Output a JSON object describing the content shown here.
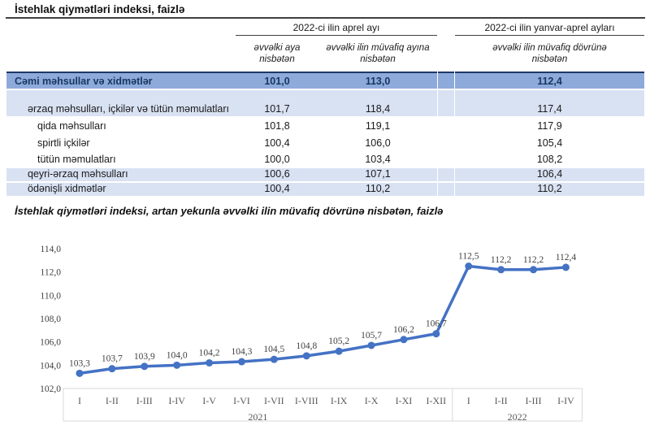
{
  "page": {
    "title": "İstehlak qiymətləri indeksi, faizlə"
  },
  "table": {
    "col_groups": [
      {
        "label": "2022-ci ilin aprel ayı"
      },
      {
        "label": "2022-ci ilin yanvar-aprel ayları"
      }
    ],
    "col_headers": [
      "əvvəlki aya nisbətən",
      "əvvəlki ilin müvafiq ayına nisbətən",
      "əvvəlki ilin müvafiq dövrünə nisbətən"
    ],
    "rows": [
      {
        "label": "Cəmi məhsullar və xidmətlər",
        "indent": 0,
        "bold": true,
        "band": "accent",
        "values": [
          "101,0",
          "113,0",
          "112,4"
        ]
      },
      {
        "label": "ərzaq məhsulları, içkilər və tütün məmulatları",
        "indent": 1,
        "bold": false,
        "band": "light",
        "values": [
          "101,7",
          "118,4",
          "117,4"
        ]
      },
      {
        "label": "qida məhsulları",
        "indent": 2,
        "bold": false,
        "band": "white",
        "values": [
          "101,8",
          "119,1",
          "117,9"
        ]
      },
      {
        "label": "spirtli içkilər",
        "indent": 2,
        "bold": false,
        "band": "white",
        "values": [
          "100,4",
          "106,0",
          "105,4"
        ]
      },
      {
        "label": "tütün məmulatları",
        "indent": 2,
        "bold": false,
        "band": "white",
        "values": [
          "100,0",
          "103,4",
          "108,2"
        ]
      },
      {
        "label": "qeyri-ərzaq məhsulları",
        "indent": 1,
        "bold": false,
        "band": "light",
        "values": [
          "100,6",
          "107,1",
          "106,4"
        ]
      },
      {
        "label": "ödənişli xidmətlər",
        "indent": 1,
        "bold": false,
        "band": "light",
        "values": [
          "100,4",
          "110,2",
          "110,2"
        ]
      }
    ]
  },
  "chart_data": {
    "type": "line",
    "title": "İstehlak qiymətləri indeksi, artan yekunla əvvəlki ilin müvafiq dövrünə nisbətən, faizlə",
    "categories": [
      "I",
      "I-II",
      "I-III",
      "I-IV",
      "I-V",
      "I-VI",
      "I-VII",
      "I-VIII",
      "I-IX",
      "I-X",
      "I-XI",
      "I-XII",
      "I",
      "I-II",
      "I-III",
      "I-IV"
    ],
    "year_groups": [
      {
        "label": "2021",
        "span": 12
      },
      {
        "label": "2022",
        "span": 4
      }
    ],
    "values": [
      103.3,
      103.7,
      103.9,
      104.0,
      104.2,
      104.3,
      104.5,
      104.8,
      105.2,
      105.7,
      106.2,
      106.7,
      112.5,
      112.2,
      112.2,
      112.4
    ],
    "point_labels": [
      "103,3",
      "103,7",
      "103,9",
      "104,0",
      "104,2",
      "104,3",
      "104,5",
      "104,8",
      "105,2",
      "105,7",
      "106,2",
      "106,7",
      "112,5",
      "112,2",
      "112,2",
      "112,4"
    ],
    "ylim": [
      102,
      114
    ],
    "ytick_step": 2,
    "ytick_labels": [
      "102,0",
      "104,0",
      "106,0",
      "108,0",
      "110,0",
      "112,0",
      "114,0"
    ],
    "grid": false,
    "legend": "none",
    "line_color": "#4472C4"
  },
  "colors": {
    "accent_line": "#4472C4",
    "row_accent_bg": "#8EAADB",
    "row_light_bg": "#D9E2F3",
    "total_border": "#1F3864",
    "axis_box_border": "#D9D9D9",
    "chart_text": "#404040",
    "axis_cat_text": "#595959"
  }
}
